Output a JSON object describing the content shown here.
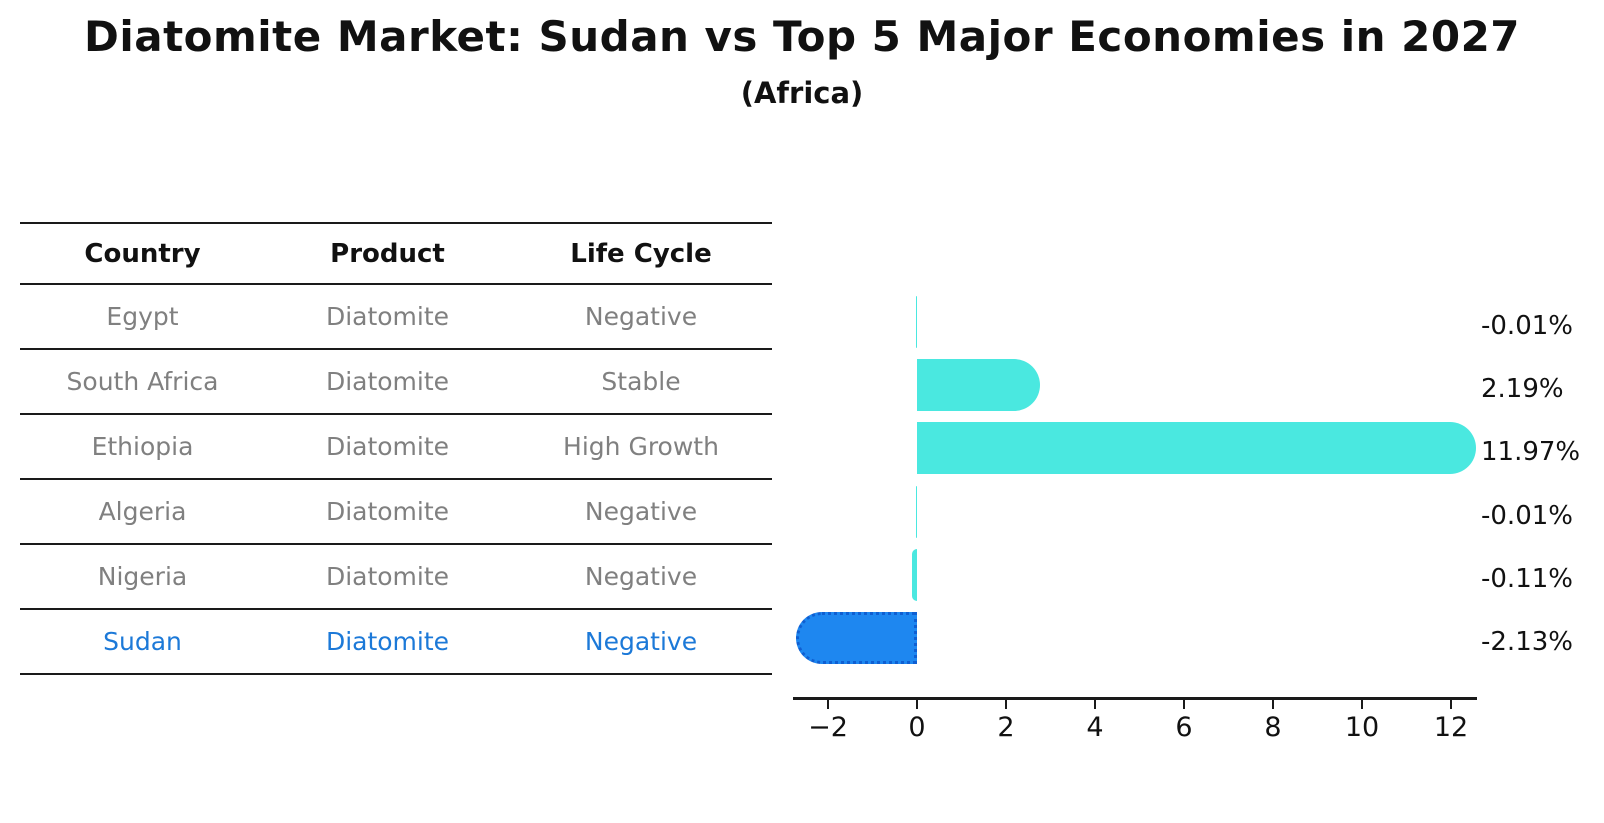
{
  "title": "Diatomite Market: Sudan vs Top 5 Major Economies in 2027",
  "subtitle": "(Africa)",
  "table": {
    "headers": [
      "Country",
      "Product",
      "Life Cycle"
    ],
    "rows": [
      {
        "country": "Egypt",
        "product": "Diatomite",
        "life_cycle": "Negative",
        "highlight": false
      },
      {
        "country": "South Africa",
        "product": "Diatomite",
        "life_cycle": "Stable",
        "highlight": false
      },
      {
        "country": "Ethiopia",
        "product": "Diatomite",
        "life_cycle": "High Growth",
        "highlight": false
      },
      {
        "country": "Algeria",
        "product": "Diatomite",
        "life_cycle": "Negative",
        "highlight": false
      },
      {
        "country": "Nigeria",
        "product": "Diatomite",
        "life_cycle": "Negative",
        "highlight": false
      },
      {
        "country": "Sudan",
        "product": "Diatomite",
        "life_cycle": "Negative",
        "highlight": true
      }
    ]
  },
  "chart_data": {
    "type": "bar",
    "orientation": "horizontal",
    "title": "Diatomite Market: Sudan vs Top 5 Major Economies in 2027 (Africa)",
    "xlabel": "",
    "ylabel": "",
    "categories": [
      "Egypt",
      "South Africa",
      "Ethiopia",
      "Algeria",
      "Nigeria",
      "Sudan"
    ],
    "values": [
      -0.01,
      2.19,
      11.97,
      -0.01,
      -0.11,
      -2.13
    ],
    "value_labels": [
      "-0.01%",
      "2.19%",
      "11.97%",
      "-0.01%",
      "-0.11%",
      "-2.13%"
    ],
    "unit": "%",
    "x_ticks": [
      -2,
      0,
      2,
      4,
      6,
      8,
      10,
      12
    ],
    "xlim": [
      -2.8,
      12.6
    ],
    "grid": false,
    "legend": false,
    "highlight_index": 5,
    "colors": {
      "bar": "#4ae8e0",
      "highlight_bar": "#1e87f0",
      "highlight_border": "#0f5fd2",
      "table_text": "#808080",
      "highlight_text": "#1c79d8",
      "axis": "#1a1a1a"
    }
  }
}
